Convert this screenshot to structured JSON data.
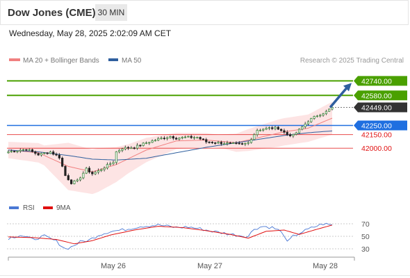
{
  "header": {
    "title": "Dow Jones (CME)",
    "timeframe": "30 MIN"
  },
  "datetime": "Wednesday, May 28, 2025 2:02:09 AM CET",
  "legend": {
    "ma20_bb": {
      "label": "MA 20 + Bollinger Bands",
      "color": "#f08080"
    },
    "ma50": {
      "label": "MA 50",
      "color": "#2f5f9e"
    },
    "credit": "Research © 2025 Trading Central"
  },
  "rsi_legend": {
    "rsi": {
      "label": "RSI",
      "color": "#4a78d4"
    },
    "ma9": {
      "label": "9MA",
      "color": "#e01010"
    }
  },
  "chart_data": [
    {
      "type": "candlestick",
      "title": "",
      "x_labels": [
        "May 26",
        "May 27",
        "May 28"
      ],
      "ylim": [
        41475,
        42880
      ],
      "levels": [
        {
          "value": 42740.0,
          "label": "42740.00",
          "kind": "resistance",
          "color": "#4aa000"
        },
        {
          "value": 42580.0,
          "label": "42580.00",
          "kind": "resistance",
          "color": "#4aa000"
        },
        {
          "value": 42449.0,
          "label": "42449.00",
          "kind": "last",
          "color": "#2b2b2b"
        },
        {
          "value": 42250.0,
          "label": "42250.00",
          "kind": "pivot",
          "color": "#1f6fe0"
        },
        {
          "value": 42150.0,
          "label": "42150.00",
          "kind": "support",
          "color": "#e01010"
        },
        {
          "value": 42000.0,
          "label": "42000.00",
          "kind": "support",
          "color": "#e01010"
        }
      ],
      "close_anchors": [
        [
          0,
          41960
        ],
        [
          6,
          41990
        ],
        [
          10,
          41930
        ],
        [
          14,
          41960
        ],
        [
          17,
          41900
        ],
        [
          19,
          41700
        ],
        [
          21,
          41620
        ],
        [
          23,
          41640
        ],
        [
          26,
          41770
        ],
        [
          28,
          41720
        ],
        [
          30,
          41750
        ],
        [
          33,
          41810
        ],
        [
          35,
          41850
        ],
        [
          36,
          41960
        ],
        [
          38,
          42000
        ],
        [
          42,
          42010
        ],
        [
          46,
          42060
        ],
        [
          50,
          42100
        ],
        [
          54,
          42130
        ],
        [
          56,
          42110
        ],
        [
          59,
          42120
        ],
        [
          63,
          42120
        ],
        [
          66,
          42070
        ],
        [
          70,
          42060
        ],
        [
          74,
          42050
        ],
        [
          78,
          42040
        ],
        [
          80,
          42060
        ],
        [
          83,
          42200
        ],
        [
          87,
          42220
        ],
        [
          90,
          42220
        ],
        [
          93,
          42150
        ],
        [
          95,
          42140
        ],
        [
          97,
          42200
        ],
        [
          100,
          42300
        ],
        [
          103,
          42360
        ],
        [
          106,
          42400
        ],
        [
          108,
          42449
        ]
      ],
      "ma20_anchors": [
        [
          0,
          41980
        ],
        [
          10,
          41950
        ],
        [
          20,
          41800
        ],
        [
          28,
          41740
        ],
        [
          36,
          41820
        ],
        [
          46,
          41980
        ],
        [
          56,
          42080
        ],
        [
          66,
          42090
        ],
        [
          76,
          42060
        ],
        [
          84,
          42120
        ],
        [
          92,
          42180
        ],
        [
          100,
          42220
        ],
        [
          108,
          42330
        ]
      ],
      "ma50_anchors": [
        [
          0,
          41980
        ],
        [
          10,
          41960
        ],
        [
          20,
          41920
        ],
        [
          28,
          41880
        ],
        [
          36,
          41870
        ],
        [
          46,
          41890
        ],
        [
          56,
          41950
        ],
        [
          66,
          42010
        ],
        [
          76,
          42060
        ],
        [
          84,
          42100
        ],
        [
          92,
          42140
        ],
        [
          100,
          42170
        ],
        [
          108,
          42190
        ]
      ],
      "bb_width_anchors": [
        [
          0,
          90
        ],
        [
          12,
          110
        ],
        [
          20,
          260
        ],
        [
          30,
          240
        ],
        [
          40,
          160
        ],
        [
          56,
          90
        ],
        [
          70,
          70
        ],
        [
          80,
          120
        ],
        [
          90,
          150
        ],
        [
          100,
          150
        ],
        [
          108,
          180
        ]
      ],
      "forecast_arrow": {
        "from": 42449,
        "to": 42740
      }
    },
    {
      "type": "line",
      "title": "",
      "ylim": [
        15,
        85
      ],
      "y_ticks": [
        70,
        50,
        30
      ],
      "series": [
        {
          "name": "RSI",
          "anchors": [
            [
              0,
              47
            ],
            [
              4,
              52
            ],
            [
              8,
              45
            ],
            [
              12,
              50
            ],
            [
              16,
              42
            ],
            [
              19,
              30
            ],
            [
              21,
              33
            ],
            [
              24,
              41
            ],
            [
              27,
              44
            ],
            [
              30,
              52
            ],
            [
              34,
              58
            ],
            [
              38,
              60
            ],
            [
              44,
              66
            ],
            [
              50,
              68
            ],
            [
              56,
              64
            ],
            [
              60,
              65
            ],
            [
              64,
              62
            ],
            [
              68,
              58
            ],
            [
              72,
              55
            ],
            [
              76,
              52
            ],
            [
              80,
              50
            ],
            [
              82,
              62
            ],
            [
              85,
              66
            ],
            [
              88,
              64
            ],
            [
              90,
              60
            ],
            [
              92,
              52
            ],
            [
              93,
              40
            ],
            [
              95,
              50
            ],
            [
              98,
              57
            ],
            [
              102,
              65
            ],
            [
              105,
              70
            ],
            [
              108,
              68
            ]
          ]
        },
        {
          "name": "9MA",
          "anchors": [
            [
              0,
              49
            ],
            [
              8,
              48
            ],
            [
              16,
              45
            ],
            [
              22,
              38
            ],
            [
              28,
              43
            ],
            [
              34,
              52
            ],
            [
              42,
              60
            ],
            [
              50,
              66
            ],
            [
              58,
              64
            ],
            [
              66,
              59
            ],
            [
              74,
              53
            ],
            [
              80,
              47
            ],
            [
              86,
              58
            ],
            [
              92,
              60
            ],
            [
              97,
              53
            ],
            [
              102,
              60
            ],
            [
              108,
              68
            ]
          ]
        }
      ]
    }
  ]
}
